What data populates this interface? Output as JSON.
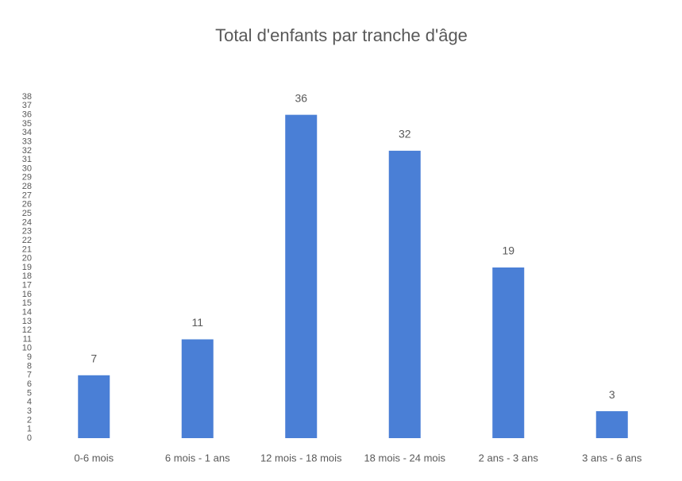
{
  "chart_data": {
    "type": "bar",
    "title": "Total d'enfants par tranche d'âge",
    "categories": [
      "0-6 mois",
      "6 mois - 1 ans",
      "12 mois - 18 mois",
      "18 mois - 24 mois",
      "2 ans - 3 ans",
      "3 ans - 6 ans"
    ],
    "values": [
      7,
      11,
      36,
      32,
      19,
      3
    ],
    "color": "#4a7fd6",
    "ylim": [
      0,
      38
    ],
    "yticks": [
      0,
      1,
      2,
      3,
      4,
      5,
      6,
      7,
      8,
      9,
      10,
      11,
      12,
      13,
      14,
      15,
      16,
      17,
      18,
      19,
      20,
      21,
      22,
      23,
      24,
      25,
      26,
      27,
      28,
      29,
      30,
      31,
      32,
      33,
      34,
      35,
      36,
      37,
      38
    ],
    "grid": false
  }
}
